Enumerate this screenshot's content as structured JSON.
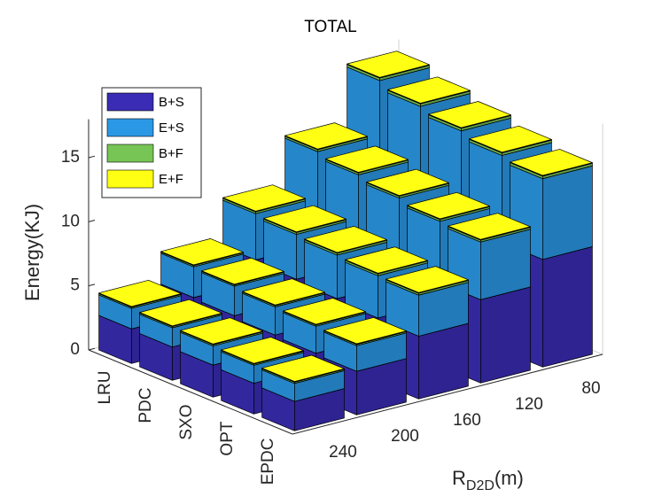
{
  "chart_data": {
    "type": "bar3-stacked",
    "title": "TOTAL",
    "zlabel": "Energy(KJ)",
    "ylabel": "R",
    "ylabel_subscript": "D2D",
    "ylabel_suffix": "(m)",
    "categories": [
      "LRU",
      "PDC",
      "SXO",
      "OPT",
      "EPDC"
    ],
    "rows": [
      240,
      200,
      160,
      120,
      80
    ],
    "zlim": [
      0,
      18
    ],
    "zticks": [
      0,
      5,
      10,
      15
    ],
    "legend": "northwest",
    "series": [
      {
        "name": "B+S",
        "color": "#3a2cb4",
        "values": [
          [
            2.7,
            2.6,
            2.5,
            2.4,
            2.3
          ],
          [
            3.9,
            3.8,
            3.6,
            3.5,
            3.4
          ],
          [
            5.6,
            5.4,
            5.2,
            5.0,
            4.9
          ],
          [
            7.6,
            7.3,
            7.0,
            6.7,
            6.5
          ],
          [
            9.8,
            9.4,
            9.0,
            8.7,
            8.4
          ]
        ]
      },
      {
        "name": "E+S",
        "color": "#2b98e6",
        "values": [
          [
            1.6,
            1.5,
            1.5,
            1.4,
            1.4
          ],
          [
            2.4,
            2.3,
            2.2,
            2.1,
            2.0
          ],
          [
            3.6,
            3.5,
            3.4,
            3.3,
            3.2
          ],
          [
            5.2,
            5.0,
            4.8,
            4.6,
            4.5
          ],
          [
            7.3,
            7.0,
            6.8,
            6.5,
            6.3
          ]
        ]
      },
      {
        "name": "B+F",
        "color": "#77c555",
        "values": [
          [
            0.1,
            0.1,
            0.1,
            0.1,
            0.1
          ],
          [
            0.1,
            0.1,
            0.1,
            0.1,
            0.1
          ],
          [
            0.15,
            0.15,
            0.15,
            0.15,
            0.15
          ],
          [
            0.15,
            0.15,
            0.15,
            0.15,
            0.15
          ],
          [
            0.2,
            0.2,
            0.2,
            0.2,
            0.2
          ]
        ]
      },
      {
        "name": "E+F",
        "color": "#ffff14",
        "values": [
          [
            0.05,
            0.05,
            0.05,
            0.05,
            0.05
          ],
          [
            0.05,
            0.05,
            0.05,
            0.05,
            0.05
          ],
          [
            0.05,
            0.05,
            0.05,
            0.05,
            0.05
          ],
          [
            0.05,
            0.05,
            0.05,
            0.05,
            0.05
          ],
          [
            0.05,
            0.05,
            0.05,
            0.05,
            0.05
          ]
        ]
      }
    ]
  }
}
